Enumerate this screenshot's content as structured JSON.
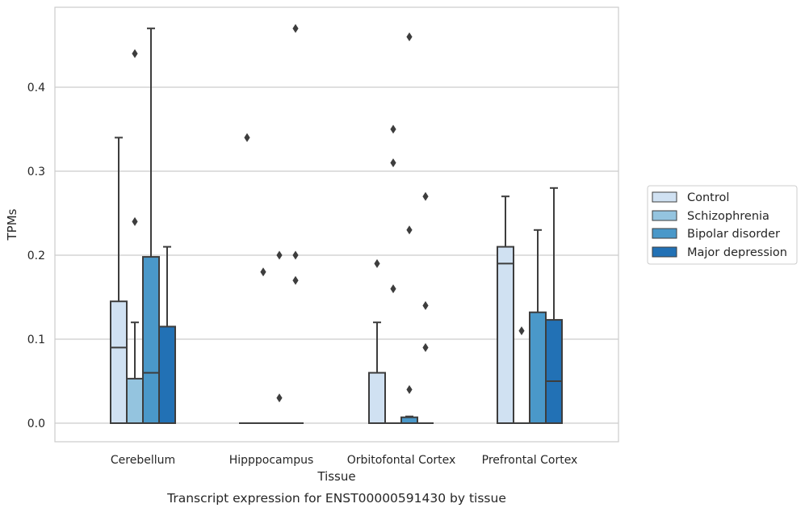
{
  "caption": "Transcript expression for ENST00000591430 by tissue",
  "chart_data": {
    "type": "boxplot",
    "xlabel": "Tissue",
    "ylabel": "TPMs",
    "ylim": [
      -0.023,
      0.495
    ],
    "yticks": [
      0.0,
      0.1,
      0.2,
      0.3,
      0.4
    ],
    "ytick_labels": [
      "0.0",
      "0.1",
      "0.2",
      "0.3",
      "0.4"
    ],
    "grid": true,
    "legend_position": "right",
    "categories": [
      "Cerebellum",
      "Hipppocampus",
      "Orbitofontal Cortex",
      "Prefrontal Cortex"
    ],
    "series": [
      {
        "name": "Control",
        "color": "#d0e1f2",
        "boxes": [
          {
            "q1": 0.0,
            "median": 0.09,
            "q3": 0.145,
            "whisker_low": 0.0,
            "whisker_high": 0.34,
            "outliers": []
          },
          {
            "q1": 0.0,
            "median": 0.0,
            "q3": 0.0,
            "whisker_low": 0.0,
            "whisker_high": 0.0,
            "outliers": [
              0.34
            ]
          },
          {
            "q1": 0.0,
            "median": 0.0,
            "q3": 0.06,
            "whisker_low": 0.0,
            "whisker_high": 0.12,
            "outliers": [
              0.19
            ]
          },
          {
            "q1": 0.0,
            "median": 0.19,
            "q3": 0.21,
            "whisker_low": 0.0,
            "whisker_high": 0.27,
            "outliers": []
          }
        ]
      },
      {
        "name": "Schizophrenia",
        "color": "#94c4df",
        "boxes": [
          {
            "q1": 0.0,
            "median": 0.0,
            "q3": 0.053,
            "whisker_low": 0.0,
            "whisker_high": 0.12,
            "outliers": [
              0.24,
              0.44
            ]
          },
          {
            "q1": 0.0,
            "median": 0.0,
            "q3": 0.0,
            "whisker_low": 0.0,
            "whisker_high": 0.0,
            "outliers": [
              0.18
            ]
          },
          {
            "q1": 0.0,
            "median": 0.0,
            "q3": 0.0,
            "whisker_low": 0.0,
            "whisker_high": 0.0,
            "outliers": [
              0.16,
              0.35,
              0.31
            ]
          },
          {
            "q1": 0.0,
            "median": 0.0,
            "q3": 0.0,
            "whisker_low": 0.0,
            "whisker_high": 0.0,
            "outliers": [
              0.11
            ]
          }
        ]
      },
      {
        "name": "Bipolar disorder",
        "color": "#4a98c9",
        "boxes": [
          {
            "q1": 0.0,
            "median": 0.06,
            "q3": 0.198,
            "whisker_low": 0.0,
            "whisker_high": 0.47,
            "outliers": []
          },
          {
            "q1": 0.0,
            "median": 0.0,
            "q3": 0.0,
            "whisker_low": 0.0,
            "whisker_high": 0.0,
            "outliers": [
              0.2,
              0.03
            ]
          },
          {
            "q1": 0.0,
            "median": 0.0,
            "q3": 0.007,
            "whisker_low": 0.0,
            "whisker_high": 0.008,
            "outliers": [
              0.04,
              0.23,
              0.46
            ]
          },
          {
            "q1": 0.0,
            "median": 0.0,
            "q3": 0.132,
            "whisker_low": 0.0,
            "whisker_high": 0.23,
            "outliers": []
          }
        ]
      },
      {
        "name": "Major depression",
        "color": "#2271b5",
        "boxes": [
          {
            "q1": 0.0,
            "median": 0.0,
            "q3": 0.115,
            "whisker_low": 0.0,
            "whisker_high": 0.21,
            "outliers": []
          },
          {
            "q1": 0.0,
            "median": 0.0,
            "q3": 0.0,
            "whisker_low": 0.0,
            "whisker_high": 0.0,
            "outliers": [
              0.2,
              0.17,
              0.47
            ]
          },
          {
            "q1": 0.0,
            "median": 0.0,
            "q3": 0.0,
            "whisker_low": 0.0,
            "whisker_high": 0.0,
            "outliers": [
              0.09,
              0.14,
              0.27
            ]
          },
          {
            "q1": 0.0,
            "median": 0.05,
            "q3": 0.123,
            "whisker_low": 0.0,
            "whisker_high": 0.28,
            "outliers": []
          }
        ]
      }
    ],
    "colors": {
      "edge": "#3d3d3d",
      "grid": "#cccccc",
      "spine": "#cccccc"
    }
  }
}
